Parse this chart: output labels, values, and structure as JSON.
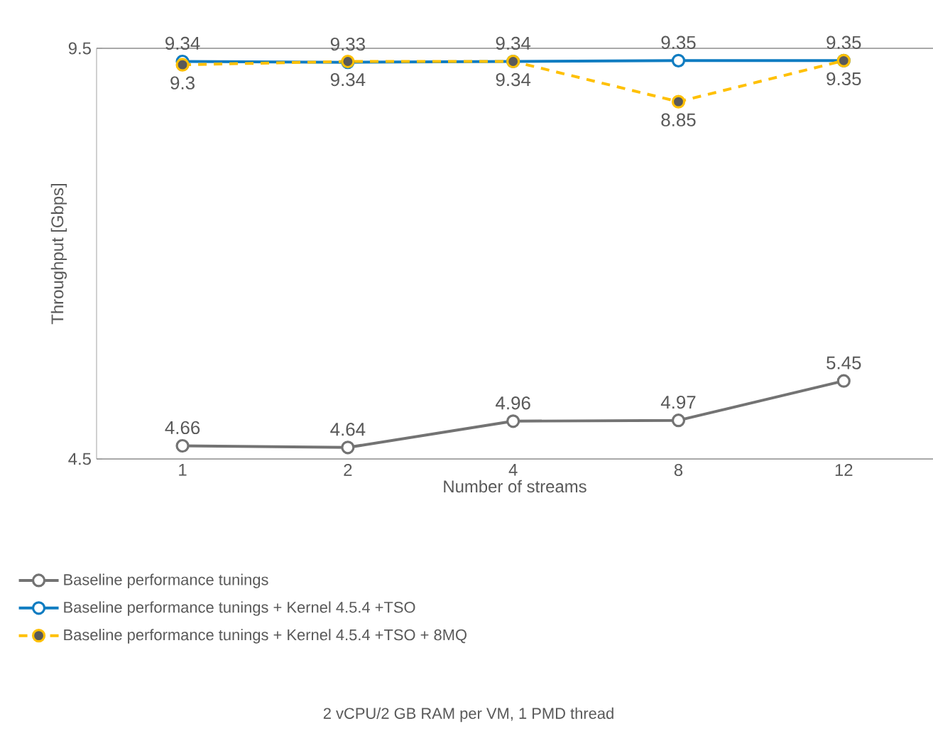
{
  "chart_data": {
    "type": "line",
    "xlabel": "Number of streams",
    "ylabel": "Throughput [Gbps]",
    "categories": [
      "1",
      "2",
      "4",
      "8",
      "12"
    ],
    "ylim": [
      4.5,
      9.5
    ],
    "yticks": [
      4.5,
      9.5
    ],
    "legend": "bottom",
    "marker": "circle",
    "data_labels": true,
    "series": [
      {
        "name": "Baseline performance tunings",
        "color": "#737373",
        "values": [
          4.66,
          4.64,
          4.96,
          4.97,
          5.45
        ]
      },
      {
        "name": "Baseline performance tunings + Kernel 4.5.4 +TSO",
        "color": "#0f7cc1",
        "values": [
          9.34,
          9.33,
          9.34,
          9.35,
          9.35
        ]
      },
      {
        "name": "Baseline performance tunings + Kernel 4.5.4 +TSO + 8MQ",
        "color": "#ffc000",
        "line_style": "dashed",
        "values": [
          9.3,
          9.34,
          9.34,
          8.85,
          9.35
        ]
      }
    ],
    "annotations": [
      "2 vCPU/2 GB RAM per VM, 1 PMD thread"
    ]
  }
}
